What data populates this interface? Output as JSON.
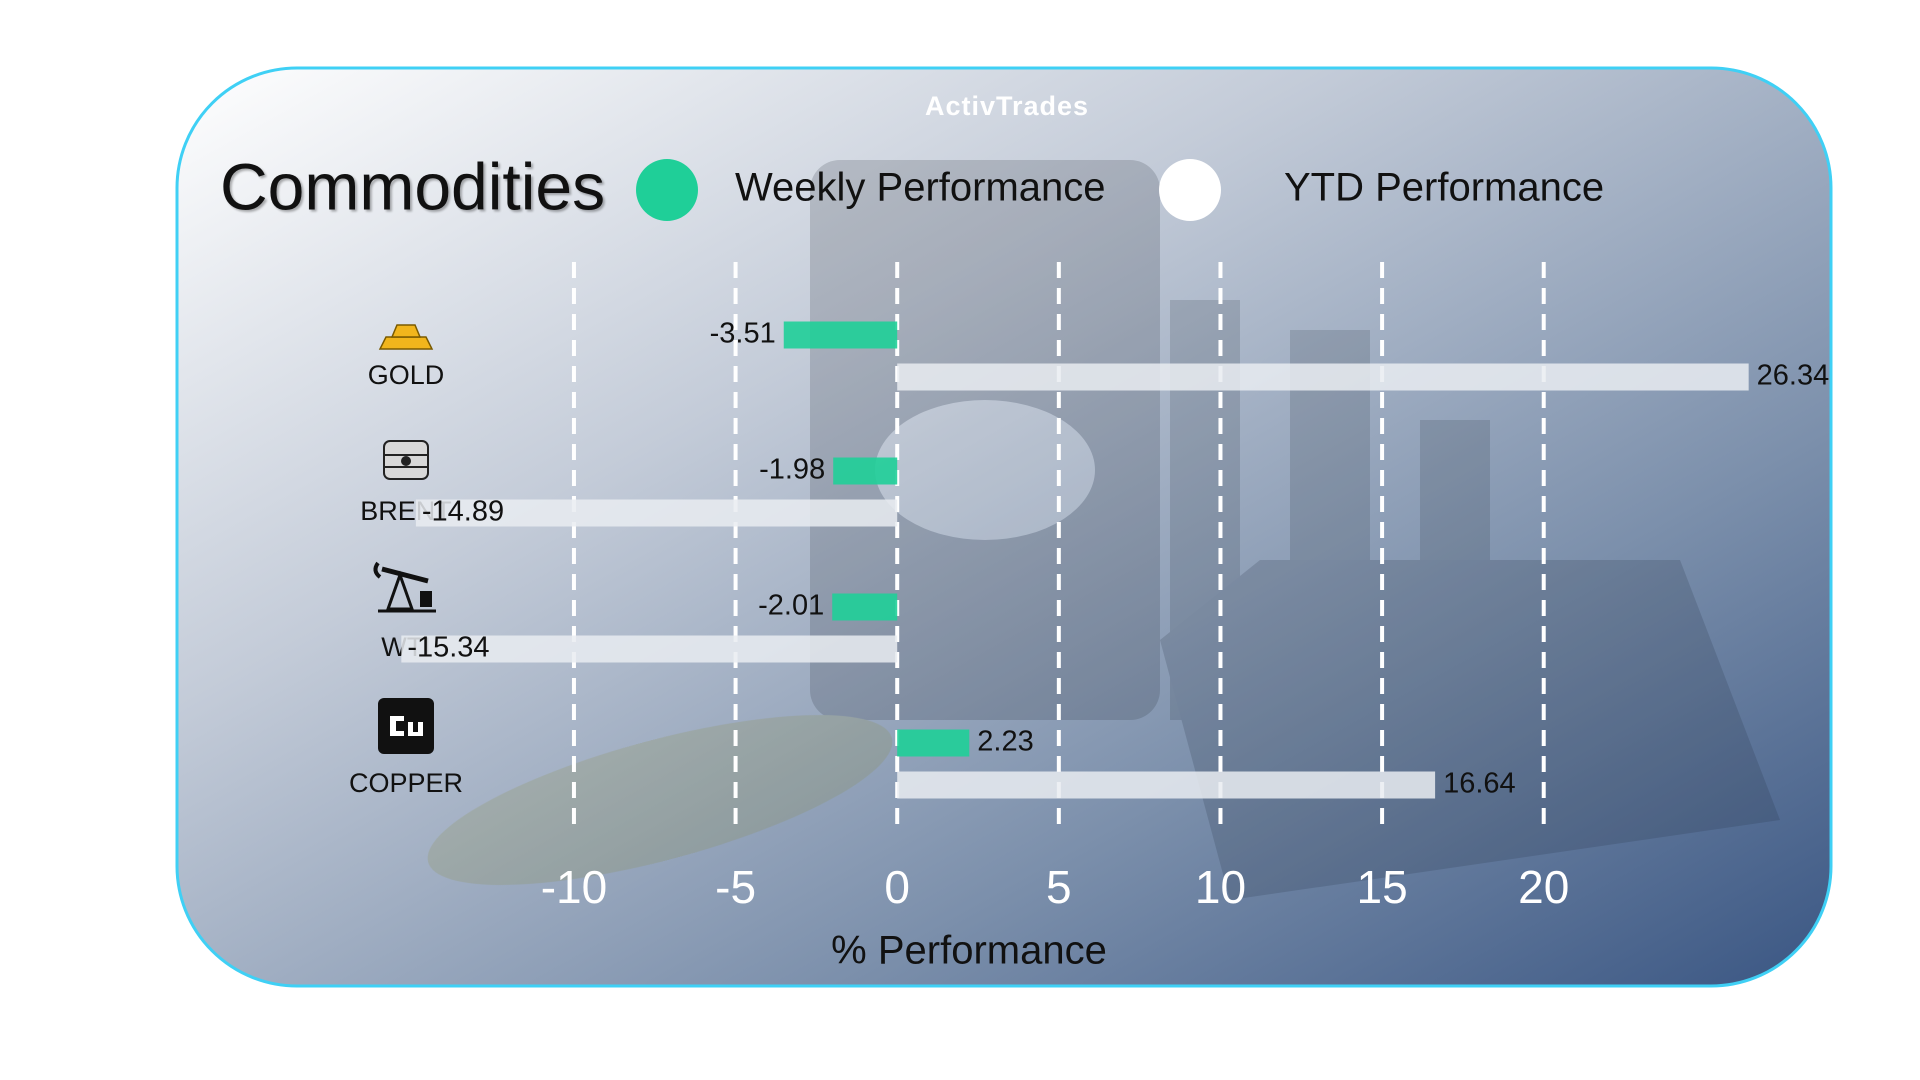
{
  "chart_data": {
    "type": "bar",
    "orientation": "horizontal",
    "brand": "ActivTrades",
    "title": "Commodities",
    "categories": [
      "GOLD",
      "BRENT",
      "WTI",
      "COPPER"
    ],
    "series": [
      {
        "name": "Weekly Performance",
        "color": "#1fcf98",
        "values": [
          -3.51,
          -1.98,
          -2.01,
          2.23
        ]
      },
      {
        "name": "YTD Performance",
        "color": "#e9ecf1",
        "values": [
          26.34,
          -14.89,
          -15.34,
          16.64
        ]
      }
    ],
    "xlabel": "% Performance",
    "xlim": [
      -16,
      27
    ],
    "xticks": [
      -10,
      -5,
      0,
      5,
      10,
      15,
      20
    ],
    "grid": true
  }
}
